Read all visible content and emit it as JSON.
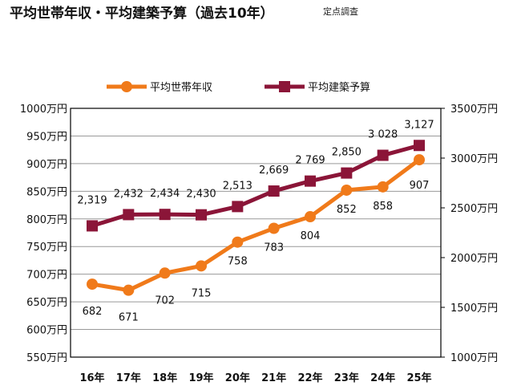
{
  "chart_data": {
    "type": "line",
    "title": "平均世帯年収・平均建築予算（過去10年）",
    "subtitle": "定点調査",
    "categories": [
      "16年",
      "17年",
      "18年",
      "19年",
      "20年",
      "21年",
      "22年",
      "23年",
      "24年",
      "25年"
    ],
    "series": [
      {
        "name": "平均世帯年収",
        "axis": "left",
        "color": "#f07a1a",
        "marker": "circle",
        "values": [
          682,
          671,
          702,
          715,
          758,
          783,
          804,
          852,
          858,
          907
        ],
        "labels": [
          "682",
          "671",
          "702",
          "715",
          "758",
          "783",
          "804",
          "852",
          "858",
          "907"
        ]
      },
      {
        "name": "平均建築予算",
        "axis": "right",
        "color": "#8b1538",
        "marker": "square",
        "values": [
          2319,
          2432,
          2434,
          2430,
          2513,
          2669,
          2769,
          2850,
          3028,
          3127
        ],
        "labels": [
          "2,319",
          "2,432",
          "2,434",
          "2,430",
          "2,513",
          "2,669",
          "2 769",
          "2,850",
          "3 028",
          "3,127"
        ]
      }
    ],
    "left_axis": {
      "min": 550,
      "max": 1000,
      "step": 50,
      "ticks": [
        "550万円",
        "600万円",
        "650万円",
        "700万円",
        "750万円",
        "800万円",
        "850万円",
        "900万円",
        "950万円",
        "1000万円"
      ]
    },
    "right_axis": {
      "min": 1000,
      "max": 3500,
      "step": 500,
      "ticks": [
        "1000万円",
        "1500万円",
        "2000万円",
        "2500万円",
        "3000万円",
        "3500万円"
      ]
    },
    "legend": "top",
    "grid": true
  }
}
